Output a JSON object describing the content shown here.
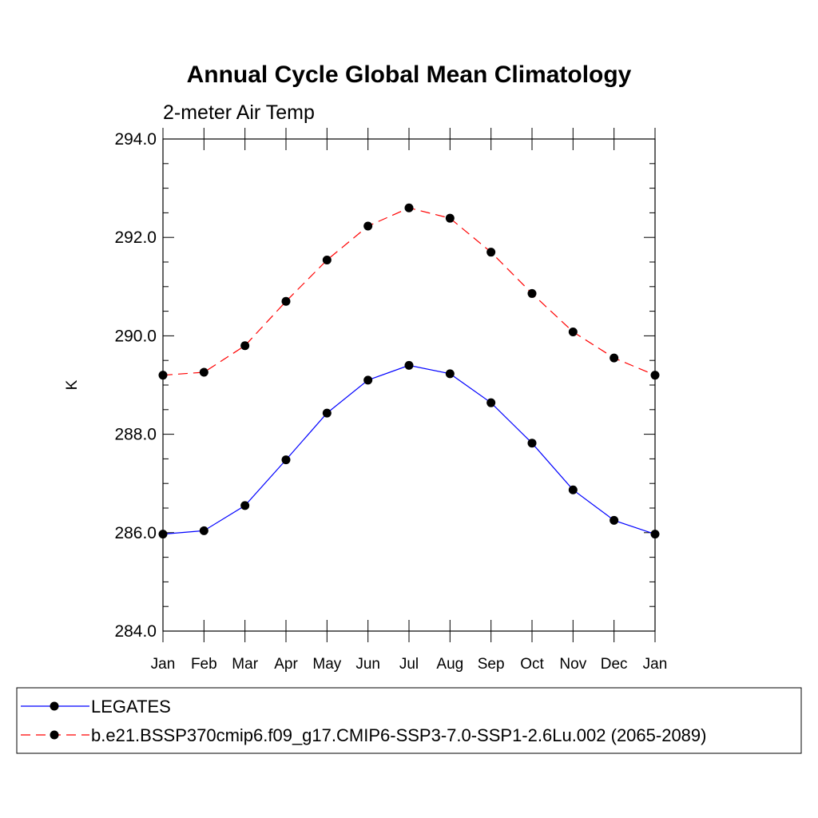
{
  "chart_data": {
    "type": "line",
    "title": "Annual Cycle Global Mean Climatology",
    "subtitle": "2-meter Air Temp",
    "xlabel": "",
    "ylabel": "K",
    "categories": [
      "Jan",
      "Feb",
      "Mar",
      "Apr",
      "May",
      "Jun",
      "Jul",
      "Aug",
      "Sep",
      "Oct",
      "Nov",
      "Dec",
      "Jan"
    ],
    "ylim": [
      284.0,
      294.0
    ],
    "yticks": [
      "284.0",
      "286.0",
      "288.0",
      "290.0",
      "292.0",
      "294.0"
    ],
    "grid": false,
    "legend_position": "bottom",
    "series": [
      {
        "name": "LEGATES",
        "color": "#0000ff",
        "style": "solid",
        "marker": "filled-circle",
        "values": [
          285.97,
          286.04,
          286.55,
          287.48,
          288.43,
          289.1,
          289.4,
          289.23,
          288.64,
          287.82,
          286.87,
          286.25,
          285.97
        ]
      },
      {
        "name": "b.e21.BSSP370cmip6.f09_g17.CMIP6-SSP3-7.0-SSP1-2.6Lu.002 (2065-2089)",
        "color": "#ff0000",
        "style": "dashed",
        "marker": "filled-circle",
        "values": [
          289.2,
          289.26,
          289.8,
          290.7,
          291.54,
          292.23,
          292.6,
          292.39,
          291.7,
          290.86,
          290.08,
          289.55,
          289.2
        ]
      }
    ]
  }
}
